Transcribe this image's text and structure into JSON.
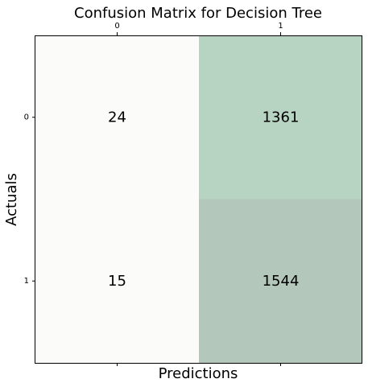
{
  "chart_data": {
    "type": "heatmap",
    "title": "Confusion Matrix for Decision Tree",
    "xlabel": "Predictions",
    "ylabel": "Actuals",
    "x_ticks": [
      "0",
      "1"
    ],
    "y_ticks": [
      "0",
      "1"
    ],
    "x_tick_position": "top",
    "values": [
      [
        24,
        1361
      ],
      [
        15,
        1544
      ]
    ],
    "cell_labels": [
      [
        "24",
        "1361"
      ],
      [
        "15",
        "1544"
      ]
    ],
    "cell_colors": [
      [
        "#fbfbf9",
        "#b7d3c2"
      ],
      [
        "#fbfcf9",
        "#b4c7bb"
      ]
    ],
    "grid": false
  }
}
